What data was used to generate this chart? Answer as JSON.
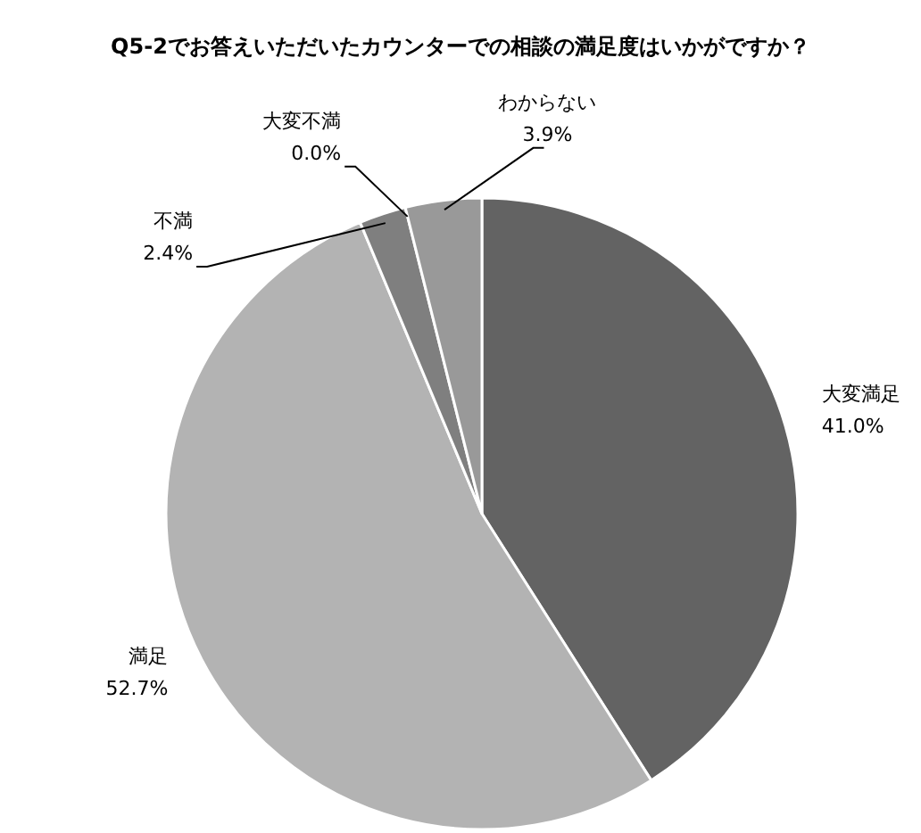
{
  "chart_data": {
    "type": "pie",
    "title": "Q5-2でお答えいただいたカウンターでの相談の満足度はいかがですか？",
    "categories": [
      "大変満足",
      "満足",
      "不満",
      "大変不満",
      "わからない"
    ],
    "values": [
      41.0,
      52.7,
      2.4,
      0.0,
      3.9
    ],
    "colors": [
      "#636363",
      "#b3b3b3",
      "#7f7f7f",
      null,
      "#999999"
    ],
    "value_labels": [
      "41.0%",
      "52.7%",
      "2.4%",
      "0.0%",
      "3.9%"
    ],
    "legend": false
  }
}
